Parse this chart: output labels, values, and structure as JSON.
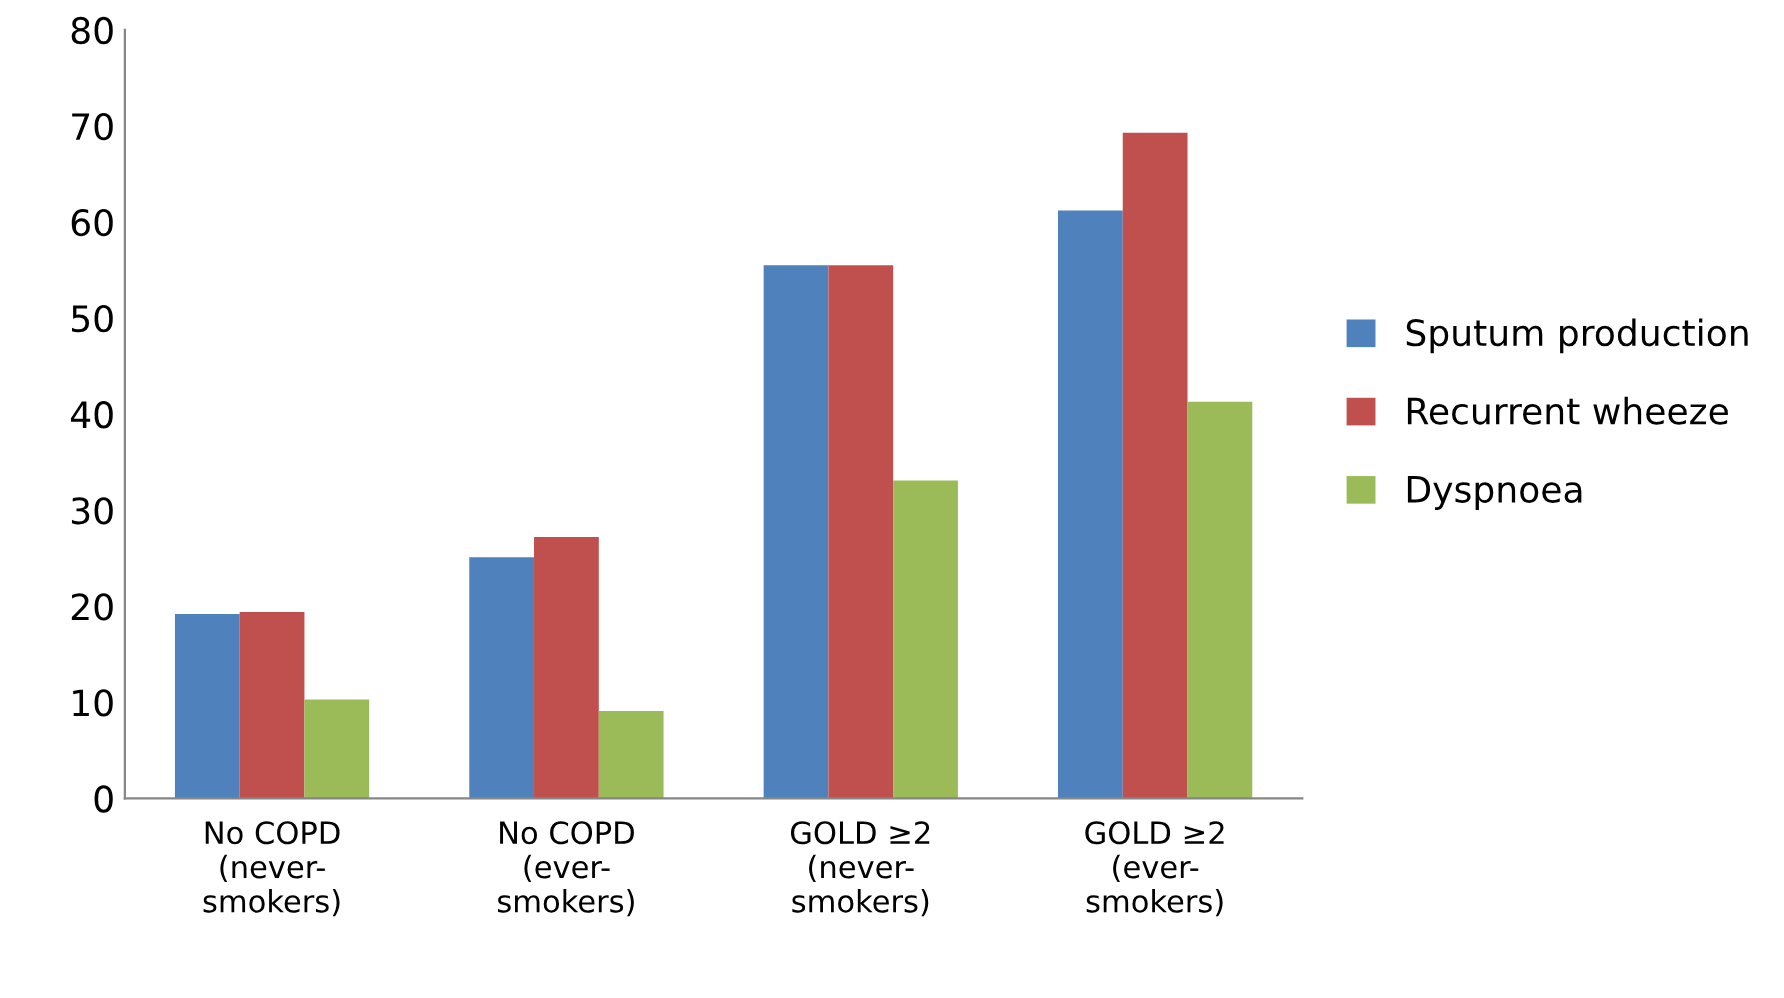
{
  "chart_data": {
    "type": "bar",
    "categories": [
      "No COPD\n(never-\nsmokers)",
      "No COPD\n(ever-\nsmokers)",
      "GOLD ≥2\n(never-\nsmokers)",
      "GOLD ≥2\n(ever-\nsmokers)"
    ],
    "series": [
      {
        "name": "Sputum production",
        "color": "#4f81bd",
        "values": [
          19.2,
          25.1,
          55.5,
          61.2
        ]
      },
      {
        "name": "Recurrent wheeze",
        "color": "#c0504d",
        "values": [
          19.4,
          27.2,
          55.5,
          69.3
        ]
      },
      {
        "name": "Dyspnoea",
        "color": "#9bbb59",
        "values": [
          10.3,
          9.1,
          33.1,
          41.3
        ]
      }
    ],
    "ylim": [
      0,
      80
    ],
    "yticks": [
      0,
      10,
      20,
      30,
      40,
      50,
      60,
      70,
      80
    ],
    "grid": false,
    "legend": "right"
  }
}
